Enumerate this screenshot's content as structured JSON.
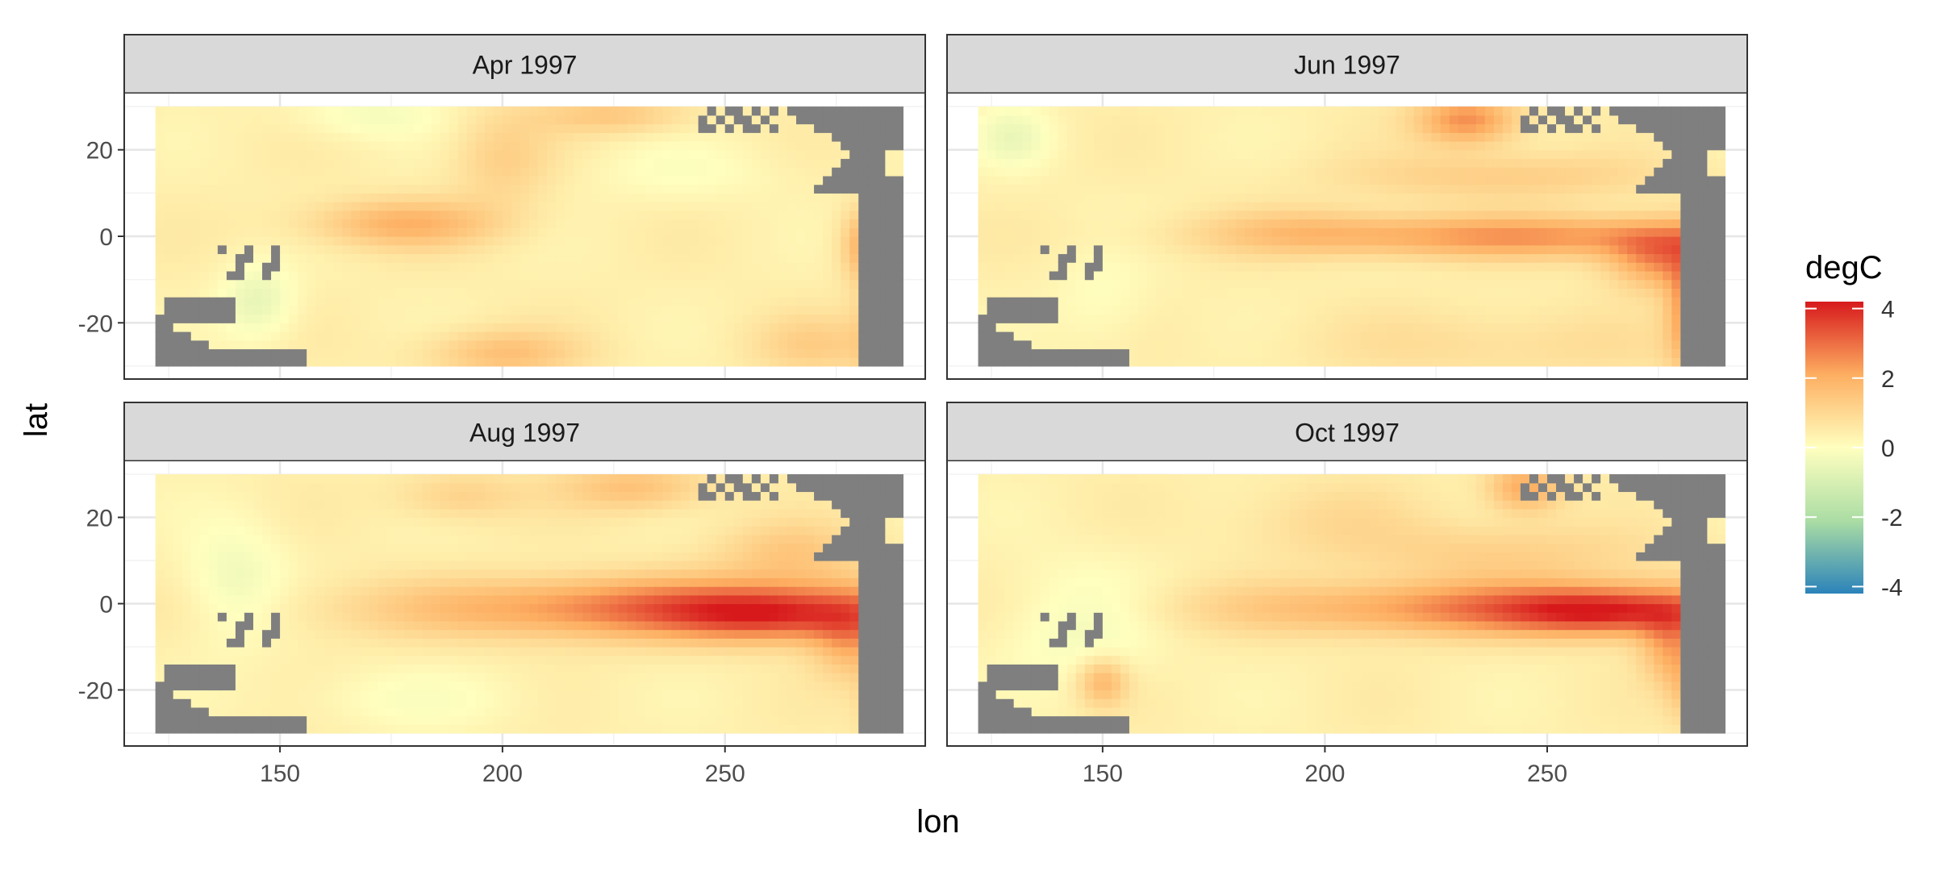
{
  "chart_data": {
    "type": "heatmap",
    "title": "",
    "xlabel": "lon",
    "ylabel": "lat",
    "xlim": [
      115,
      295
    ],
    "ylim": [
      -33,
      33
    ],
    "x_ticks": [
      150,
      200,
      250
    ],
    "y_ticks": [
      20,
      0,
      -20
    ],
    "grid": true,
    "legend": {
      "title": "degC",
      "position": "right",
      "ticks": [
        4,
        2,
        0,
        -2,
        -4
      ],
      "range": [
        -4.2,
        4.2
      ],
      "colors": [
        "#2b83ba",
        "#abdda4",
        "#ffffbf",
        "#fdae61",
        "#d7191c"
      ]
    },
    "land_color": "#7f7f7f",
    "grid_extent": {
      "lon": [
        122,
        290
      ],
      "lat": [
        -30,
        30
      ]
    },
    "panels": [
      {
        "label": "Apr 1997",
        "features": [
          {
            "lon": 178,
            "lat": 3,
            "slon": 15,
            "slat": 4,
            "value": 1.5
          },
          {
            "lon": 282,
            "lat": -2,
            "slon": 4,
            "slat": 6,
            "value": 1.8
          },
          {
            "lon": 225,
            "lat": 28,
            "slon": 12,
            "slat": 3,
            "value": 1.0
          },
          {
            "lon": 200,
            "lat": -27,
            "slon": 12,
            "slat": 4,
            "value": 1.2
          },
          {
            "lon": 145,
            "lat": -15,
            "slon": 6,
            "slat": 6,
            "value": -1.0
          },
          {
            "lon": 170,
            "lat": 28,
            "slon": 12,
            "slat": 4,
            "value": -0.6
          },
          {
            "lon": 240,
            "lat": 15,
            "slon": 15,
            "slat": 5,
            "value": -0.4
          },
          {
            "lon": 285,
            "lat": -22,
            "slon": 4,
            "slat": 8,
            "value": 1.2
          },
          {
            "lon": 200,
            "lat": 18,
            "slon": 8,
            "slat": 8,
            "value": 0.8
          },
          {
            "lon": 270,
            "lat": -25,
            "slon": 10,
            "slat": 5,
            "value": 0.8
          }
        ]
      },
      {
        "label": "Jun 1997",
        "features": [
          {
            "lon": 245,
            "lat": 0,
            "slon": 40,
            "slat": 3.5,
            "value": 2.0
          },
          {
            "lon": 275,
            "lat": -5,
            "slon": 8,
            "slat": 5,
            "value": 2.0
          },
          {
            "lon": 283,
            "lat": -17,
            "slon": 4,
            "slat": 10,
            "value": 2.5
          },
          {
            "lon": 232,
            "lat": 27,
            "slon": 8,
            "slat": 4,
            "value": 2.2
          },
          {
            "lon": 240,
            "lat": 14,
            "slon": 25,
            "slat": 4,
            "value": 0.9
          },
          {
            "lon": 195,
            "lat": 2,
            "slon": 15,
            "slat": 4,
            "value": 0.6
          },
          {
            "lon": 130,
            "lat": 23,
            "slon": 6,
            "slat": 5,
            "value": -0.8
          },
          {
            "lon": 150,
            "lat": -15,
            "slon": 8,
            "slat": 8,
            "value": -0.4
          },
          {
            "lon": 240,
            "lat": -25,
            "slon": 30,
            "slat": 6,
            "value": 0.5
          }
        ]
      },
      {
        "label": "Aug 1997",
        "features": [
          {
            "lon": 245,
            "lat": -1,
            "slon": 45,
            "slat": 5,
            "value": 2.8
          },
          {
            "lon": 260,
            "lat": -3,
            "slon": 15,
            "slat": 4,
            "value": 1.4
          },
          {
            "lon": 278,
            "lat": -9,
            "slon": 6,
            "slat": 6,
            "value": 1.3
          },
          {
            "lon": 287,
            "lat": -22,
            "slon": 4,
            "slat": 8,
            "value": 2.0
          },
          {
            "lon": 230,
            "lat": 27,
            "slon": 12,
            "slat": 4,
            "value": 1.2
          },
          {
            "lon": 140,
            "lat": 5,
            "slon": 8,
            "slat": 10,
            "value": -0.8
          },
          {
            "lon": 180,
            "lat": -22,
            "slon": 20,
            "slat": 5,
            "value": -0.4
          },
          {
            "lon": 190,
            "lat": 25,
            "slon": 10,
            "slat": 4,
            "value": 0.8
          },
          {
            "lon": 265,
            "lat": 12,
            "slon": 12,
            "slat": 5,
            "value": 1.0
          }
        ]
      },
      {
        "label": "Oct 1997",
        "features": [
          {
            "lon": 250,
            "lat": -1,
            "slon": 45,
            "slat": 4.5,
            "value": 2.6
          },
          {
            "lon": 262,
            "lat": -2,
            "slon": 14,
            "slat": 3.5,
            "value": 1.6
          },
          {
            "lon": 278,
            "lat": -10,
            "slon": 5,
            "slat": 6,
            "value": 1.6
          },
          {
            "lon": 283,
            "lat": -20,
            "slon": 4,
            "slat": 6,
            "value": 1.2
          },
          {
            "lon": 245,
            "lat": 27,
            "slon": 6,
            "slat": 4,
            "value": 1.8
          },
          {
            "lon": 240,
            "lat": 12,
            "slon": 25,
            "slat": 5,
            "value": 0.8
          },
          {
            "lon": 145,
            "lat": -5,
            "slon": 12,
            "slat": 10,
            "value": -0.7
          },
          {
            "lon": 200,
            "lat": 20,
            "slon": 15,
            "slat": 6,
            "value": 0.5
          },
          {
            "lon": 150,
            "lat": -18,
            "slon": 4,
            "slat": 4,
            "value": 1.5
          }
        ]
      }
    ]
  }
}
